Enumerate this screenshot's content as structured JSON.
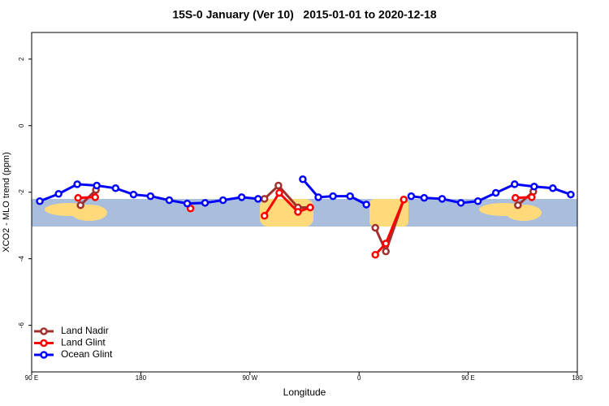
{
  "chart_data": {
    "type": "line",
    "title": "15S-0 January (Ver 10)   2015-01-01 to 2020-12-18",
    "x_label": "Longitude",
    "y_label": "XCO2 - MLO trend (ppm)",
    "xlim": [
      90,
      540
    ],
    "ylim": [
      -7.4,
      2.8
    ],
    "xticks": [
      {
        "value": 90,
        "label": "90 E"
      },
      180,
      {
        "value": 270,
        "label": "90 W"
      },
      {
        "value": 360,
        "label": "0"
      },
      {
        "value": 450,
        "label": "90 E"
      },
      {
        "value": 540,
        "label": "180"
      }
    ],
    "yticks": [
      2,
      0,
      -2,
      -4,
      -6
    ],
    "legend": "bottom-left",
    "series": [
      {
        "name": "Land Nadir",
        "color": "#a0302e",
        "x": [
          130.3,
          143,
          null,
          282,
          293.5,
          309.6,
          319.7,
          null,
          373.4,
          382.1,
          396.9,
          null,
          491,
          503.7
        ],
        "values": [
          -2.39,
          -1.93,
          null,
          -2.2,
          -1.8,
          -2.46,
          -2.46,
          null,
          -3.07,
          -3.78,
          -2.22,
          null,
          -2.39,
          -1.98
        ]
      },
      {
        "name": "Land Glint",
        "color": "#ff0000",
        "x": [
          128.3,
          142.4,
          null,
          221,
          null,
          282,
          294.2,
          309.6,
          319.7,
          null,
          373.4,
          382.1,
          396.9,
          null,
          488.9,
          502.4
        ],
        "values": [
          -2.17,
          -2.15,
          null,
          -2.49,
          null,
          -2.71,
          -2.02,
          -2.59,
          -2.46,
          null,
          -3.88,
          -3.54,
          -2.22,
          null,
          -2.17,
          -2.15
        ]
      },
      {
        "name": "Ocean Glint",
        "color": "#0000ff",
        "x": [
          96.7,
          112.2,
          127.6,
          143.7,
          159.2,
          174,
          188,
          203.5,
          218.3,
          233,
          247.8,
          263.2,
          276.7,
          null,
          313.6,
          326.4,
          338.5,
          352.6,
          366,
          null,
          403,
          413.7,
          428.5,
          444,
          458,
          472.8,
          488.3,
          504.4,
          519.8,
          534.6
        ],
        "values": [
          -2.27,
          -2.05,
          -1.76,
          -1.8,
          -1.88,
          -2.07,
          -2.12,
          -2.24,
          -2.34,
          -2.32,
          -2.24,
          -2.15,
          -2.2,
          null,
          -1.61,
          -2.15,
          -2.12,
          -2.12,
          -2.37,
          null,
          -2.12,
          -2.17,
          -2.2,
          -2.32,
          -2.27,
          -2.02,
          -1.76,
          -1.83,
          -1.88,
          -2.07
        ]
      }
    ]
  }
}
